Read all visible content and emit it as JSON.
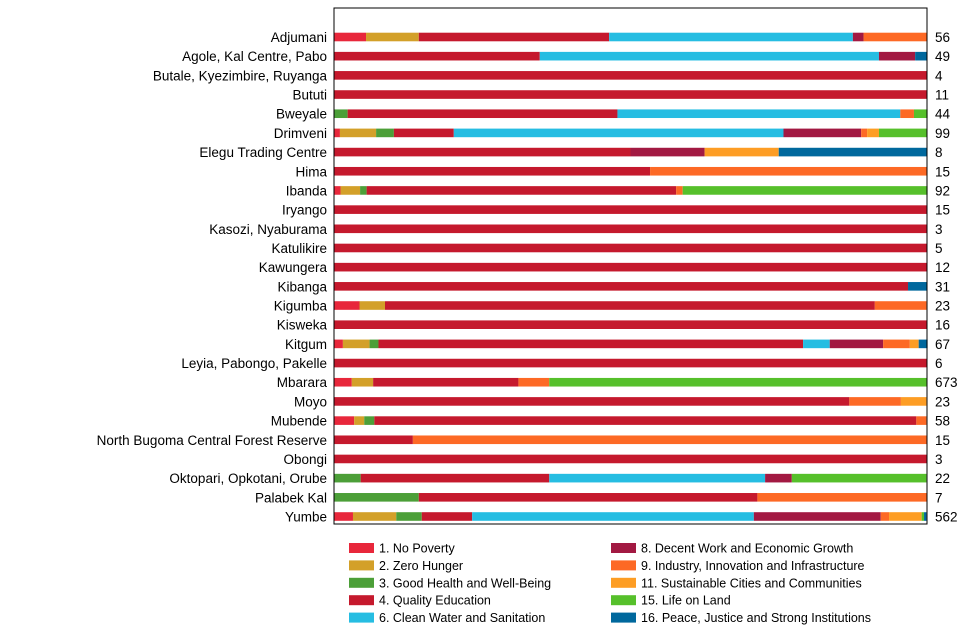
{
  "chart_data": {
    "type": "bar",
    "orientation": "horizontal",
    "stacked": "percent",
    "grid": false,
    "legend_position": "bottom",
    "categories": [
      "Adjumani",
      "Agole, Kal Centre, Pabo",
      "Butale, Kyezimbire, Ruyanga",
      "Bututi",
      "Bweyale",
      "Drimveni",
      "Elegu Trading Centre",
      "Hima",
      "Ibanda",
      "Iryango",
      "Kasozi, Nyaburama",
      "Katulikire",
      "Kawungera",
      "Kibanga",
      "Kigumba",
      "Kisweka",
      "Kitgum",
      "Leyia, Pabongo, Pakelle",
      "Mbarara",
      "Moyo",
      "Mubende",
      "North Bugoma Central Forest Reserve",
      "Obongi",
      "Oktopari, Opkotani, Orube",
      "Palabek Kal",
      "Yumbe"
    ],
    "totals": [
      "56",
      "49",
      "4",
      "11",
      "44",
      "99",
      "8",
      "15",
      "92",
      "15",
      "3",
      "5",
      "12",
      "31",
      "23",
      "16",
      "67",
      "6",
      "673",
      "23",
      "58",
      "15",
      "3",
      "22",
      "7",
      "562"
    ],
    "series": [
      {
        "name": "1. No Poverty",
        "color": "#e8273b",
        "values": [
          5.4,
          0,
          0,
          0,
          0,
          1,
          0,
          0,
          1.1,
          0,
          0,
          0,
          0,
          0,
          4.3,
          0,
          1.5,
          0,
          3,
          0,
          3.4,
          0,
          0,
          0,
          0,
          3.2
        ]
      },
      {
        "name": "2. Zero Hunger",
        "color": "#d3a029",
        "values": [
          8.9,
          0,
          0,
          0,
          0,
          6.1,
          0,
          0,
          3.3,
          0,
          0,
          0,
          0,
          0,
          4.3,
          0,
          4.5,
          0,
          3.6,
          0,
          1.7,
          0,
          0,
          0,
          0,
          7.3
        ]
      },
      {
        "name": "3. Good Health and Well-Being",
        "color": "#4c9f38",
        "values": [
          0,
          0,
          0,
          0,
          2.3,
          3,
          0,
          0,
          1.1,
          0,
          0,
          0,
          0,
          0,
          0,
          0,
          1.5,
          0,
          0,
          0,
          1.7,
          0,
          0,
          4.5,
          14.3,
          4.3
        ]
      },
      {
        "name": "4. Quality Education",
        "color": "#c5192d",
        "values": [
          32.1,
          34.7,
          100,
          100,
          45.5,
          10.1,
          50,
          53.3,
          52.2,
          100,
          100,
          100,
          100,
          96.8,
          82.6,
          100,
          71.6,
          100,
          24.5,
          86.9,
          91.4,
          13.3,
          100,
          31.8,
          57.1,
          8.5
        ]
      },
      {
        "name": "6. Clean Water and Sanitation",
        "color": "#26bde2",
        "values": [
          41.1,
          57.2,
          0,
          0,
          47.7,
          55.6,
          0,
          0,
          0,
          0,
          0,
          0,
          0,
          0,
          0,
          0,
          4.5,
          0,
          0,
          0,
          0,
          0,
          0,
          36.4,
          0,
          47.5
        ]
      },
      {
        "name": "8. Decent Work and Economic Growth",
        "color": "#a21942",
        "values": [
          1.8,
          6.1,
          0,
          0,
          0,
          13.1,
          12.5,
          0,
          0,
          0,
          0,
          0,
          0,
          0,
          0,
          0,
          9,
          0,
          0,
          0,
          0,
          0,
          0,
          4.5,
          0,
          21.4
        ]
      },
      {
        "name": "9. Industry, Innovation and Infrastructure",
        "color": "#fd6925",
        "values": [
          10.7,
          0,
          0,
          0,
          2.3,
          1,
          0,
          46.7,
          1.1,
          0,
          0,
          0,
          0,
          0,
          8.7,
          0,
          4.5,
          0,
          5.2,
          8.7,
          1.7,
          86.7,
          0,
          0,
          28.6,
          1.4
        ]
      },
      {
        "name": "11. Sustainable Cities and Communities",
        "color": "#fd9d24",
        "values": [
          0,
          0,
          0,
          0,
          0,
          2,
          12.5,
          0,
          0,
          0,
          0,
          0,
          0,
          0,
          0,
          0,
          1.5,
          0,
          0,
          4.3,
          0,
          0,
          0,
          0,
          0,
          5.5
        ]
      },
      {
        "name": "15. Life on Land",
        "color": "#56c02b",
        "values": [
          0,
          0,
          0,
          0,
          2.3,
          8.1,
          0,
          0,
          41.3,
          0,
          0,
          0,
          0,
          0,
          0,
          0,
          0,
          0,
          63.7,
          0,
          0,
          0,
          0,
          22.7,
          0,
          0.4
        ]
      },
      {
        "name": "16. Peace, Justice and Strong Institutions",
        "color": "#00689d",
        "values": [
          0,
          2,
          0,
          0,
          0,
          0,
          25,
          0,
          0,
          0,
          0,
          0,
          0,
          3.2,
          0,
          0,
          1.5,
          0,
          0,
          0,
          0,
          0,
          0,
          0,
          0,
          0.4
        ]
      }
    ],
    "xlim": [
      0,
      100
    ],
    "title": "",
    "xlabel": "",
    "ylabel": ""
  }
}
